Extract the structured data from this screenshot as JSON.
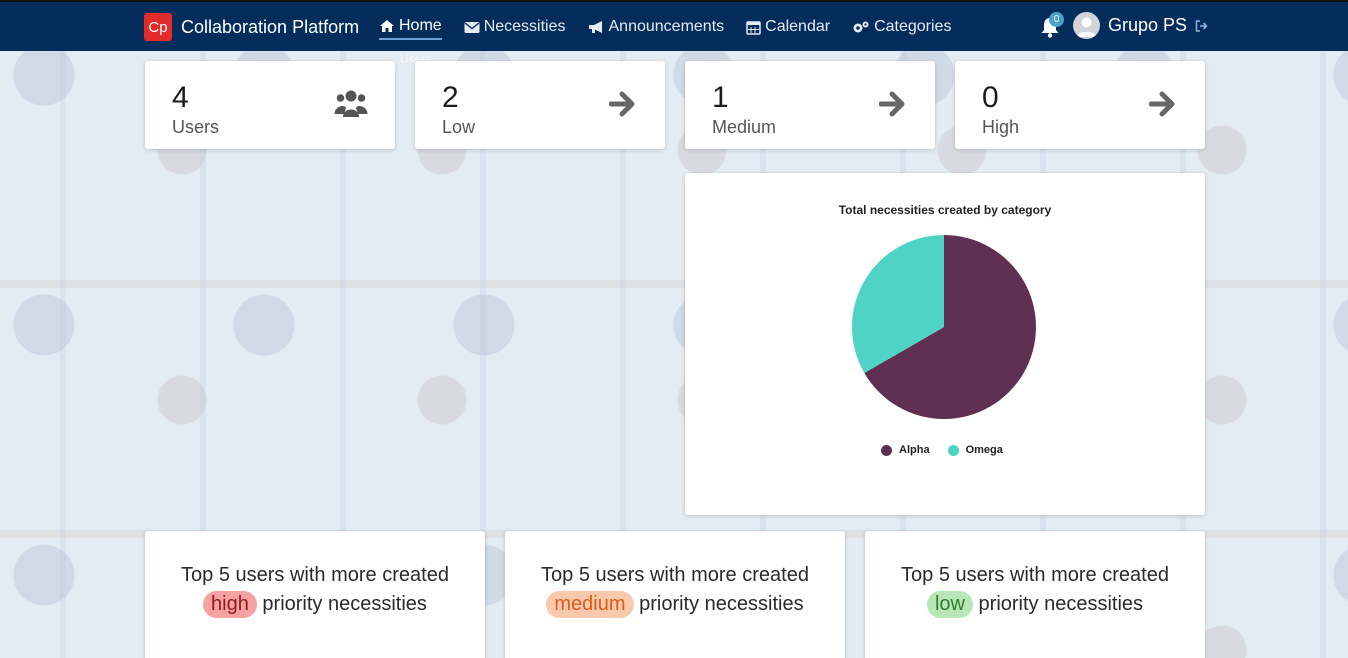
{
  "navbar": {
    "brand_logo": "Cp",
    "brand_name": "Collaboration Platform",
    "items": [
      {
        "label": "Home",
        "icon": "home-icon",
        "active": true
      },
      {
        "label": "Necessities",
        "icon": "envelope-icon"
      },
      {
        "label": "Announcements",
        "icon": "megaphone-icon"
      },
      {
        "label": "Calendar",
        "icon": "calendar-icon"
      },
      {
        "label": "Categories",
        "icon": "gears-icon"
      }
    ],
    "notification_count": "0",
    "username": "Grupo PS"
  },
  "ghost_text": "Users",
  "stats": [
    {
      "value": "4",
      "label": "Users",
      "icon": "users-icon"
    },
    {
      "value": "2",
      "label": "Low",
      "icon": "arrow-right-icon"
    },
    {
      "value": "1",
      "label": "Medium",
      "icon": "arrow-right-icon"
    },
    {
      "value": "0",
      "label": "High",
      "icon": "arrow-right-icon"
    }
  ],
  "chart_data": {
    "type": "pie",
    "title": "Total necessities created by category",
    "categories": [
      "Alpha",
      "Omega"
    ],
    "values": [
      2,
      1
    ],
    "colors": [
      "#5f3052",
      "#4fd3c4"
    ],
    "legend": "bottom"
  },
  "top_cards": [
    {
      "prefix": "Top 5 users with more created",
      "priority": "high",
      "suffix": "priority necessities"
    },
    {
      "prefix": "Top 5 users with more created",
      "priority": "medium",
      "suffix": "priority necessities"
    },
    {
      "prefix": "Top 5 users with more created",
      "priority": "low",
      "suffix": "priority necessities"
    }
  ]
}
